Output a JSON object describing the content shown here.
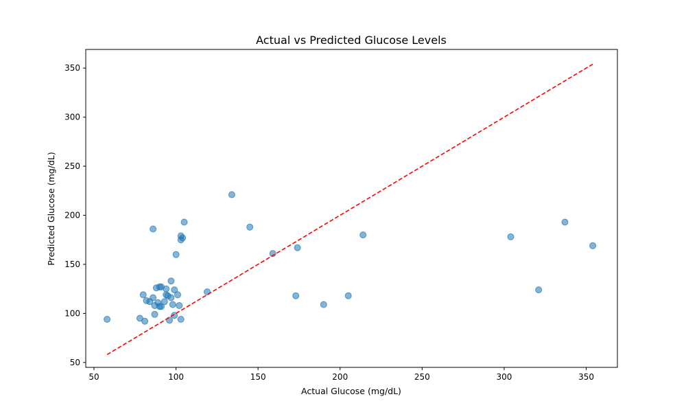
{
  "chart_data": {
    "type": "scatter",
    "title": "Actual vs Predicted Glucose Levels",
    "xlabel": "Actual Glucose (mg/dL)",
    "ylabel": "Predicted Glucose (mg/dL)",
    "xlim": [
      45,
      369
    ],
    "ylim": [
      45,
      369
    ],
    "xticks": [
      50,
      100,
      150,
      200,
      250,
      300,
      350
    ],
    "yticks": [
      50,
      100,
      150,
      200,
      250,
      300,
      350
    ],
    "grid": false,
    "point_color": "#1f77b4",
    "reference_line": {
      "x": [
        58,
        354
      ],
      "y": [
        58,
        354
      ],
      "color": "#ff0000",
      "style": "dashed"
    },
    "points": [
      [
        58,
        94
      ],
      [
        78,
        95
      ],
      [
        80,
        119
      ],
      [
        81,
        92
      ],
      [
        82,
        113
      ],
      [
        84,
        112
      ],
      [
        86,
        116
      ],
      [
        86,
        186
      ],
      [
        87,
        99
      ],
      [
        87,
        108
      ],
      [
        88,
        126
      ],
      [
        89,
        111
      ],
      [
        90,
        127
      ],
      [
        90,
        107
      ],
      [
        91,
        127
      ],
      [
        91,
        107
      ],
      [
        93,
        112
      ],
      [
        94,
        125
      ],
      [
        94,
        119
      ],
      [
        95,
        118
      ],
      [
        96,
        93
      ],
      [
        97,
        116
      ],
      [
        97,
        133
      ],
      [
        98,
        109
      ],
      [
        99,
        98
      ],
      [
        99,
        124
      ],
      [
        100,
        160
      ],
      [
        101,
        119
      ],
      [
        102,
        108
      ],
      [
        103,
        94
      ],
      [
        103,
        175
      ],
      [
        103,
        179
      ],
      [
        104,
        177
      ],
      [
        105,
        193
      ],
      [
        119,
        122
      ],
      [
        134,
        221
      ],
      [
        145,
        188
      ],
      [
        159,
        161
      ],
      [
        173,
        118
      ],
      [
        174,
        167
      ],
      [
        190,
        109
      ],
      [
        205,
        118
      ],
      [
        214,
        180
      ],
      [
        304,
        178
      ],
      [
        321,
        124
      ],
      [
        337,
        193
      ],
      [
        354,
        169
      ]
    ]
  }
}
